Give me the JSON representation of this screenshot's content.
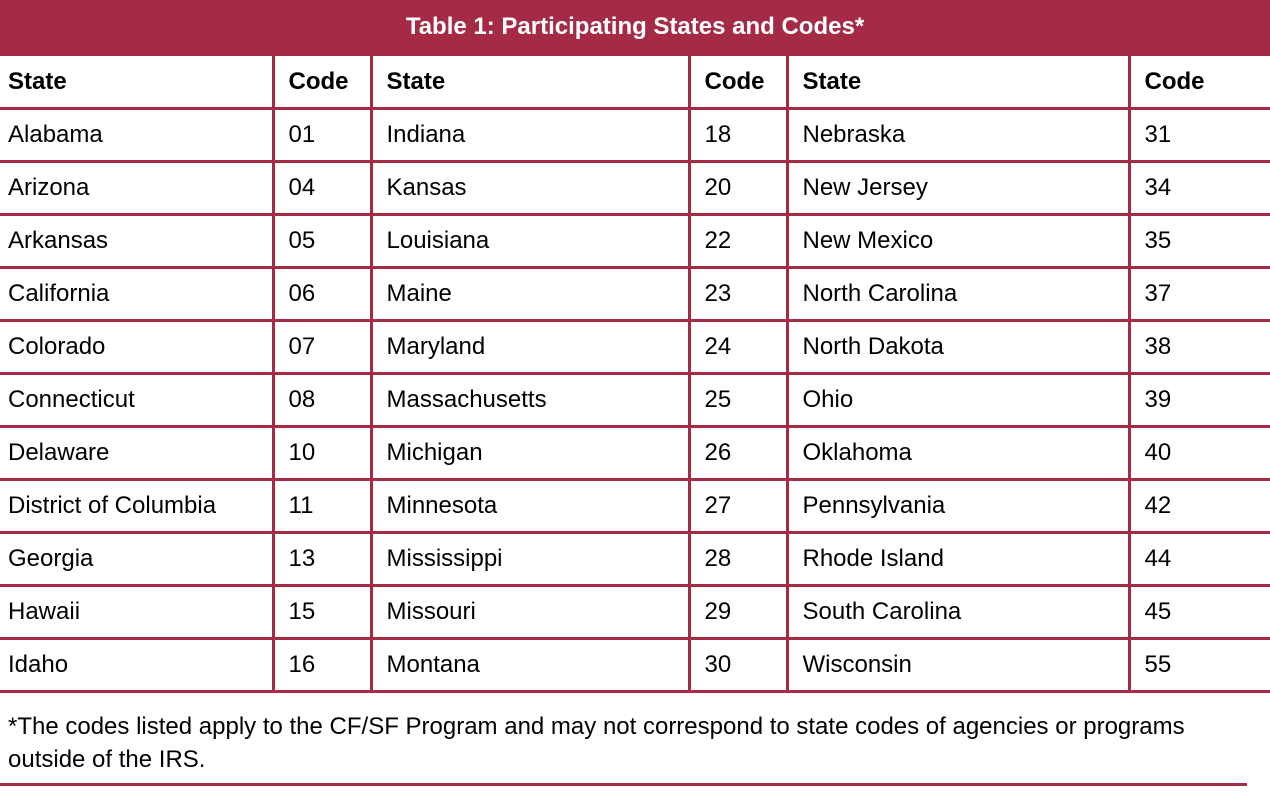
{
  "title": "Table 1: Participating States and Codes*",
  "colors": {
    "accent": "#a52a45"
  },
  "headers": [
    "State",
    "Code",
    "State",
    "Code",
    "State",
    "Code"
  ],
  "rows": [
    [
      "Alabama",
      "01",
      "Indiana",
      "18",
      "Nebraska",
      "31"
    ],
    [
      "Arizona",
      "04",
      "Kansas",
      "20",
      "New Jersey",
      "34"
    ],
    [
      "Arkansas",
      "05",
      "Louisiana",
      "22",
      "New Mexico",
      "35"
    ],
    [
      "California",
      "06",
      "Maine",
      "23",
      "North Carolina",
      "37"
    ],
    [
      "Colorado",
      "07",
      "Maryland",
      "24",
      "North Dakota",
      "38"
    ],
    [
      "Connecticut",
      "08",
      "Massachusetts",
      "25",
      "Ohio",
      "39"
    ],
    [
      "Delaware",
      "10",
      "Michigan",
      "26",
      "Oklahoma",
      "40"
    ],
    [
      "District of Columbia",
      "11",
      "Minnesota",
      "27",
      "Pennsylvania",
      "42"
    ],
    [
      "Georgia",
      "13",
      "Mississippi",
      "28",
      "Rhode Island",
      "44"
    ],
    [
      "Hawaii",
      "15",
      "Missouri",
      "29",
      "South Carolina",
      "45"
    ],
    [
      "Idaho",
      "16",
      "Montana",
      "30",
      "Wisconsin",
      "55"
    ]
  ],
  "footnote": "*The codes listed apply to the CF/SF Program and may not correspond to state codes of agencies or programs outside of the IRS."
}
